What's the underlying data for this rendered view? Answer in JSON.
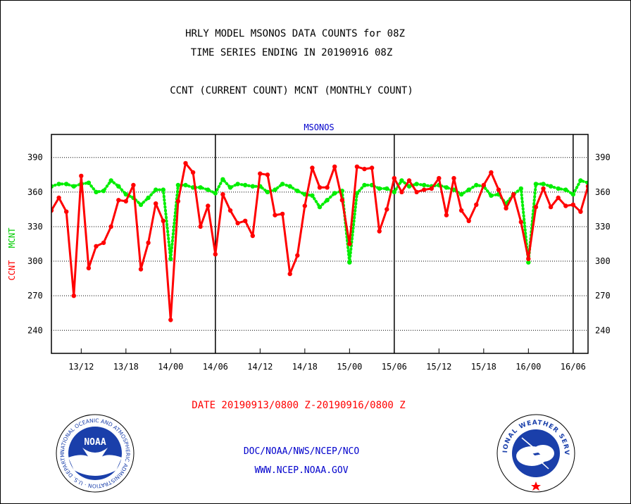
{
  "header": {
    "title_line1": "HRLY MODEL MSONOS DATA COUNTS for 08Z",
    "title_line2": "TIME SERIES ENDING IN 20190916 08Z",
    "subtitle": "CCNT (CURRENT COUNT) MCNT (MONTHLY COUNT)"
  },
  "chart_data": {
    "type": "line",
    "title": "MSONOS",
    "ylabel_ccnt": "CCNT",
    "ylabel_mcnt": "MCNT",
    "xlabel": "DATE 20190913/0800 Z-20190916/0800 Z",
    "ylim": [
      220,
      410
    ],
    "yticks": [
      240,
      270,
      300,
      330,
      360,
      390
    ],
    "xlim": [
      8,
      80
    ],
    "xticks": [
      {
        "x": 12,
        "label": "13/12"
      },
      {
        "x": 18,
        "label": "13/18"
      },
      {
        "x": 24,
        "label": "14/00"
      },
      {
        "x": 30,
        "label": "14/06"
      },
      {
        "x": 36,
        "label": "14/12"
      },
      {
        "x": 42,
        "label": "14/18"
      },
      {
        "x": 48,
        "label": "15/00"
      },
      {
        "x": 54,
        "label": "15/06"
      },
      {
        "x": 60,
        "label": "15/12"
      },
      {
        "x": 66,
        "label": "15/18"
      },
      {
        "x": 72,
        "label": "16/00"
      },
      {
        "x": 78,
        "label": "16/06"
      }
    ],
    "day_lines": [
      30,
      54,
      78
    ],
    "grid": "horizontal dotted",
    "colors": {
      "ccnt": "#ff0000",
      "mcnt": "#00ee00",
      "title": "#0000cc",
      "frame": "#000000"
    },
    "series": [
      {
        "name": "CCNT",
        "values": [
          344,
          355,
          343,
          270,
          374,
          294,
          313,
          316,
          330,
          353,
          352,
          366,
          293,
          316,
          350,
          335,
          249,
          352,
          385,
          377,
          330,
          348,
          306,
          358,
          344,
          333,
          335,
          322,
          376,
          375,
          340,
          341,
          289,
          305,
          348,
          381,
          364,
          364,
          382,
          353,
          315,
          382,
          380,
          381,
          326,
          345,
          372,
          360,
          370,
          360,
          362,
          363,
          372,
          340,
          372,
          344,
          335,
          349,
          366,
          377,
          362,
          346,
          358,
          334,
          302,
          347,
          363,
          347,
          355,
          348,
          349,
          343,
          365
        ]
      },
      {
        "name": "MCNT",
        "values": [
          365,
          367,
          367,
          365,
          367,
          368,
          360,
          361,
          370,
          365,
          358,
          355,
          349,
          355,
          362,
          362,
          302,
          366,
          366,
          364,
          364,
          362,
          359,
          371,
          364,
          367,
          366,
          365,
          365,
          360,
          362,
          367,
          365,
          361,
          358,
          357,
          347,
          353,
          359,
          361,
          299,
          359,
          366,
          366,
          363,
          363,
          360,
          370,
          365,
          367,
          366,
          365,
          366,
          364,
          362,
          358,
          362,
          366,
          365,
          357,
          358,
          350,
          358,
          363,
          299,
          367,
          367,
          365,
          363,
          362,
          358,
          370,
          368
        ]
      }
    ]
  },
  "footer": {
    "agency_line": "DOC/NOAA/NWS/NCEP/NCO",
    "url": "WWW.NCEP.NOAA.GOV",
    "noaa_logo_text": "NOAA",
    "noaa_ring_text": "NATIONAL OCEANIC AND ATMOSPHERIC ADMINISTRATION · U.S. DEPARTMENT OF COMMERCE",
    "nws_ring_text": "NATIONAL WEATHER SERVICE"
  }
}
